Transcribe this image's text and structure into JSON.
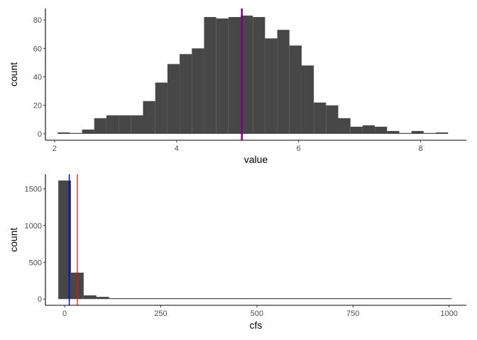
{
  "chart_data": [
    {
      "type": "bar",
      "subtype": "histogram",
      "xlabel": "value",
      "ylabel": "count",
      "xlim": [
        1.85,
        8.75
      ],
      "ylim": [
        -4.5,
        88
      ],
      "x_ticks": [
        2,
        4,
        6,
        8
      ],
      "y_ticks": [
        0,
        20,
        40,
        60,
        80
      ],
      "bin_width": 0.2,
      "bins": [
        {
          "x0": 2.05,
          "x1": 2.25,
          "count": 1
        },
        {
          "x0": 2.25,
          "x1": 2.45,
          "count": 0
        },
        {
          "x0": 2.45,
          "x1": 2.65,
          "count": 3
        },
        {
          "x0": 2.65,
          "x1": 2.85,
          "count": 11
        },
        {
          "x0": 2.85,
          "x1": 3.05,
          "count": 13
        },
        {
          "x0": 3.05,
          "x1": 3.25,
          "count": 13
        },
        {
          "x0": 3.25,
          "x1": 3.45,
          "count": 13
        },
        {
          "x0": 3.45,
          "x1": 3.65,
          "count": 23
        },
        {
          "x0": 3.65,
          "x1": 3.85,
          "count": 36
        },
        {
          "x0": 3.85,
          "x1": 4.05,
          "count": 49
        },
        {
          "x0": 4.05,
          "x1": 4.25,
          "count": 56
        },
        {
          "x0": 4.25,
          "x1": 4.45,
          "count": 60
        },
        {
          "x0": 4.45,
          "x1": 4.65,
          "count": 82
        },
        {
          "x0": 4.65,
          "x1": 4.85,
          "count": 81
        },
        {
          "x0": 4.85,
          "x1": 5.05,
          "count": 82
        },
        {
          "x0": 5.05,
          "x1": 5.25,
          "count": 83
        },
        {
          "x0": 5.25,
          "x1": 5.45,
          "count": 82
        },
        {
          "x0": 5.45,
          "x1": 5.65,
          "count": 67
        },
        {
          "x0": 5.65,
          "x1": 5.85,
          "count": 73
        },
        {
          "x0": 5.85,
          "x1": 6.05,
          "count": 62
        },
        {
          "x0": 6.05,
          "x1": 6.25,
          "count": 48
        },
        {
          "x0": 6.25,
          "x1": 6.45,
          "count": 22
        },
        {
          "x0": 6.45,
          "x1": 6.65,
          "count": 20
        },
        {
          "x0": 6.65,
          "x1": 6.85,
          "count": 11
        },
        {
          "x0": 6.85,
          "x1": 7.05,
          "count": 5
        },
        {
          "x0": 7.05,
          "x1": 7.25,
          "count": 6
        },
        {
          "x0": 7.25,
          "x1": 7.45,
          "count": 5
        },
        {
          "x0": 7.45,
          "x1": 7.65,
          "count": 2
        },
        {
          "x0": 7.65,
          "x1": 7.85,
          "count": 0
        },
        {
          "x0": 7.85,
          "x1": 8.05,
          "count": 2
        },
        {
          "x0": 8.05,
          "x1": 8.25,
          "count": 0
        },
        {
          "x0": 8.25,
          "x1": 8.45,
          "count": 1
        }
      ],
      "vlines": [
        {
          "x": 5.07,
          "color": "#FF0000",
          "width": 1
        },
        {
          "x": 5.07,
          "color": "#0000CD",
          "width": 1
        },
        {
          "x": 5.07,
          "color": "#800080",
          "width": 2.5
        }
      ],
      "bar_color": "#474747",
      "grid": false
    },
    {
      "type": "bar",
      "subtype": "histogram",
      "xlabel": "cfs",
      "ylabel": "count",
      "xlim": [
        -50,
        1045
      ],
      "ylim": [
        -85,
        1700
      ],
      "x_ticks": [
        0,
        250,
        500,
        750,
        1000
      ],
      "y_ticks": [
        0,
        500,
        1000,
        1500
      ],
      "bin_width": 33,
      "bins": [
        {
          "x0": -16.5,
          "x1": 16.5,
          "count": 1615
        },
        {
          "x0": 16.5,
          "x1": 49.5,
          "count": 360
        },
        {
          "x0": 49.5,
          "x1": 82.5,
          "count": 50
        },
        {
          "x0": 82.5,
          "x1": 115.5,
          "count": 30
        },
        {
          "x0": 115.5,
          "x1": 148.5,
          "count": 8
        },
        {
          "x0": 148.5,
          "x1": 181.5,
          "count": 6
        },
        {
          "x0": 181.5,
          "x1": 214.5,
          "count": 5
        },
        {
          "x0": 214.5,
          "x1": 247.5,
          "count": 5
        },
        {
          "x0": 247.5,
          "x1": 280.5,
          "count": 4
        },
        {
          "x0": 280.5,
          "x1": 313.5,
          "count": 3
        },
        {
          "x0": 313.5,
          "x1": 346.5,
          "count": 2
        },
        {
          "x0": 346.5,
          "x1": 379.5,
          "count": 2
        },
        {
          "x0": 379.5,
          "x1": 412.5,
          "count": 2
        },
        {
          "x0": 412.5,
          "x1": 445.5,
          "count": 1
        },
        {
          "x0": 445.5,
          "x1": 478.5,
          "count": 2
        },
        {
          "x0": 478.5,
          "x1": 511.5,
          "count": 1
        },
        {
          "x0": 511.5,
          "x1": 544.5,
          "count": 1
        },
        {
          "x0": 544.5,
          "x1": 577.5,
          "count": 1
        },
        {
          "x0": 577.5,
          "x1": 610.5,
          "count": 2
        },
        {
          "x0": 610.5,
          "x1": 643.5,
          "count": 1
        },
        {
          "x0": 643.5,
          "x1": 676.5,
          "count": 1
        },
        {
          "x0": 676.5,
          "x1": 709.5,
          "count": 1
        },
        {
          "x0": 709.5,
          "x1": 742.5,
          "count": 1
        },
        {
          "x0": 742.5,
          "x1": 775.5,
          "count": 1
        },
        {
          "x0": 775.5,
          "x1": 808.5,
          "count": 0
        },
        {
          "x0": 808.5,
          "x1": 841.5,
          "count": 1
        },
        {
          "x0": 841.5,
          "x1": 874.5,
          "count": 0
        },
        {
          "x0": 874.5,
          "x1": 907.5,
          "count": 1
        },
        {
          "x0": 907.5,
          "x1": 940.5,
          "count": 0
        },
        {
          "x0": 940.5,
          "x1": 973.5,
          "count": 0
        },
        {
          "x0": 973.5,
          "x1": 1006.5,
          "count": 1
        }
      ],
      "vlines": [
        {
          "x": 12,
          "color": "#0000CD",
          "width": 1.5
        },
        {
          "x": 33,
          "color": "#FF0000",
          "width": 1.2
        }
      ],
      "bar_color": "#474747",
      "grid": false
    }
  ]
}
